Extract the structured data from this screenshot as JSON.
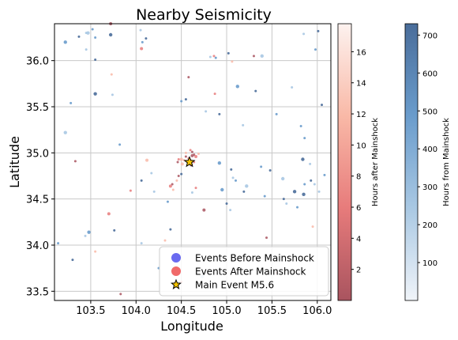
{
  "chart_data": {
    "type": "scatter",
    "title": "Nearby Seismicity",
    "xlabel": "Longitude",
    "ylabel": "Latitude",
    "xlim": [
      103.1,
      106.15
    ],
    "ylim": [
      33.4,
      36.4
    ],
    "grid": true,
    "x_ticks": [
      "103.5",
      "104.0",
      "104.5",
      "105.0",
      "105.5",
      "106.0"
    ],
    "x_tick_values": [
      103.5,
      104.0,
      104.5,
      105.0,
      105.5,
      106.0
    ],
    "y_ticks": [
      "33.5",
      "34.0",
      "34.5",
      "35.0",
      "35.5",
      "36.0"
    ],
    "y_tick_values": [
      33.5,
      34.0,
      34.5,
      35.0,
      35.5,
      36.0
    ],
    "legend": {
      "placement": "lower-right",
      "entries": [
        {
          "label": "Events Before Mainshock",
          "marker": "circle",
          "color": "#6a6af0"
        },
        {
          "label": "Events After Mainshock",
          "marker": "circle",
          "color": "#f06a6a"
        },
        {
          "label": "Main Event M5.6",
          "marker": "star",
          "color": "#f5c400"
        }
      ]
    },
    "colorbar_after": {
      "label": "Hours after Mainshock",
      "range": [
        0,
        17.8
      ],
      "ticks": [
        "2",
        "4",
        "6",
        "8",
        "10",
        "12",
        "14",
        "16"
      ],
      "tick_values": [
        2,
        4,
        6,
        8,
        10,
        12,
        14,
        16
      ],
      "colors": [
        "#a9545f",
        "#e77b7b",
        "#f9b9a7",
        "#fdf2ef"
      ]
    },
    "colorbar_before": {
      "label": "Hours from Mainshock",
      "range": [
        0,
        730
      ],
      "ticks": [
        "100",
        "200",
        "300",
        "400",
        "500",
        "600",
        "700"
      ],
      "tick_values": [
        100,
        200,
        300,
        400,
        500,
        600,
        700
      ],
      "colors": [
        "#f0f4f9",
        "#a9c8e3",
        "#6a9ccc",
        "#4a6d9a"
      ]
    },
    "main_event": {
      "x": 104.59,
      "y": 34.9,
      "label": "Main Event M5.6"
    },
    "series": [
      {
        "name": "Events Before Mainshock",
        "points": [
          [
            103.47,
            36.3
          ],
          [
            103.52,
            36.34
          ],
          [
            103.37,
            36.26
          ],
          [
            103.45,
            36.3
          ],
          [
            103.55,
            36.25
          ],
          [
            103.72,
            36.28
          ],
          [
            104.05,
            36.33
          ],
          [
            104.07,
            36.2
          ],
          [
            104.11,
            36.24
          ],
          [
            103.45,
            36.12
          ],
          [
            103.22,
            36.2
          ],
          [
            103.55,
            36.01
          ],
          [
            104.82,
            36.04
          ],
          [
            104.88,
            36.03
          ],
          [
            105.02,
            36.08
          ],
          [
            105.39,
            36.05
          ],
          [
            105.98,
            36.12
          ],
          [
            106.01,
            36.32
          ],
          [
            105.85,
            36.29
          ],
          [
            103.28,
            35.54
          ],
          [
            103.55,
            35.64
          ],
          [
            103.74,
            35.63
          ],
          [
            104.5,
            35.56
          ],
          [
            104.55,
            35.58
          ],
          [
            104.77,
            35.45
          ],
          [
            105.12,
            35.72
          ],
          [
            105.32,
            35.67
          ],
          [
            105.72,
            35.71
          ],
          [
            105.82,
            35.29
          ],
          [
            106.05,
            35.52
          ],
          [
            103.22,
            35.22
          ],
          [
            103.82,
            35.09
          ],
          [
            104.92,
            35.42
          ],
          [
            105.18,
            35.3
          ],
          [
            105.55,
            35.42
          ],
          [
            105.84,
            34.93
          ],
          [
            105.92,
            34.88
          ],
          [
            105.86,
            35.16
          ],
          [
            104.06,
            34.7
          ],
          [
            104.17,
            34.78
          ],
          [
            104.92,
            34.89
          ],
          [
            105.05,
            34.82
          ],
          [
            105.07,
            34.73
          ],
          [
            105.38,
            34.85
          ],
          [
            105.48,
            34.81
          ],
          [
            105.62,
            34.72
          ],
          [
            105.86,
            34.66
          ],
          [
            105.93,
            34.7
          ],
          [
            105.97,
            34.66
          ],
          [
            106.08,
            34.76
          ],
          [
            105.75,
            34.58
          ],
          [
            104.2,
            34.58
          ],
          [
            104.35,
            34.47
          ],
          [
            104.5,
            34.77
          ],
          [
            104.62,
            34.57
          ],
          [
            104.95,
            34.6
          ],
          [
            105.0,
            34.45
          ],
          [
            105.04,
            34.38
          ],
          [
            105.1,
            34.7
          ],
          [
            105.19,
            34.58
          ],
          [
            105.22,
            34.64
          ],
          [
            105.42,
            34.53
          ],
          [
            105.63,
            34.5
          ],
          [
            105.66,
            34.45
          ],
          [
            105.78,
            34.41
          ],
          [
            105.85,
            34.55
          ],
          [
            106.02,
            34.58
          ],
          [
            103.14,
            34.02
          ],
          [
            103.3,
            33.84
          ],
          [
            103.44,
            34.1
          ],
          [
            103.48,
            34.14
          ],
          [
            103.76,
            34.16
          ],
          [
            104.06,
            34.02
          ],
          [
            104.25,
            33.75
          ],
          [
            104.38,
            34.17
          ],
          [
            104.73,
            33.66
          ]
        ]
      },
      {
        "name": "Events After Mainshock",
        "points": [
          [
            103.72,
            36.4
          ],
          [
            104.86,
            36.05
          ],
          [
            105.06,
            35.99
          ],
          [
            105.3,
            36.05
          ],
          [
            104.06,
            36.13
          ],
          [
            103.73,
            35.85
          ],
          [
            104.58,
            35.82
          ],
          [
            104.87,
            35.64
          ],
          [
            104.5,
            34.93
          ],
          [
            104.55,
            34.96
          ],
          [
            104.58,
            34.94
          ],
          [
            104.6,
            34.92
          ],
          [
            104.62,
            34.97
          ],
          [
            104.57,
            34.91
          ],
          [
            104.53,
            34.92
          ],
          [
            104.64,
            34.98
          ],
          [
            104.66,
            34.96
          ],
          [
            104.55,
            35.0
          ],
          [
            104.62,
            35.01
          ],
          [
            104.6,
            35.03
          ],
          [
            104.51,
            34.88
          ],
          [
            104.46,
            34.9
          ],
          [
            104.64,
            34.9
          ],
          [
            104.69,
            34.99
          ],
          [
            104.61,
            34.87
          ],
          [
            104.47,
            34.93
          ],
          [
            104.45,
            34.7
          ],
          [
            104.4,
            34.66
          ],
          [
            104.38,
            34.64
          ],
          [
            104.41,
            34.6
          ],
          [
            104.47,
            34.75
          ],
          [
            104.66,
            34.62
          ],
          [
            104.12,
            34.92
          ],
          [
            103.33,
            34.91
          ],
          [
            103.94,
            34.59
          ],
          [
            104.32,
            34.05
          ],
          [
            104.75,
            34.38
          ],
          [
            104.5,
            33.6
          ],
          [
            103.55,
            33.93
          ],
          [
            103.83,
            33.47
          ],
          [
            103.7,
            34.34
          ],
          [
            105.95,
            34.2
          ],
          [
            105.44,
            34.08
          ],
          [
            105.55,
            33.7
          ]
        ]
      }
    ]
  }
}
